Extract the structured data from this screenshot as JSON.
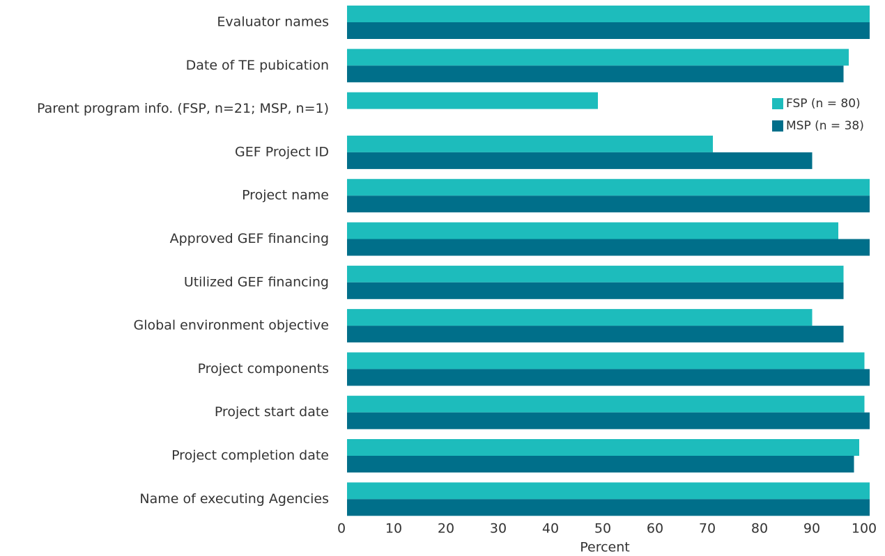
{
  "chart_data": {
    "type": "hbar",
    "categories": [
      "Evaluator names",
      "Date of TE pubication",
      "Parent program info. (FSP, n=21; MSP, n=1)",
      "GEF Project ID",
      "Project name",
      "Approved GEF financing",
      "Utilized GEF financing",
      "Global environment objective",
      "Project components",
      "Project start date",
      "Project completion date",
      "Name of executing Agencies"
    ],
    "series": [
      {
        "name": "FSP (n = 80)",
        "color": "#1dbcbc",
        "values": [
          100,
          96,
          48,
          70,
          100,
          94,
          95,
          89,
          99,
          99,
          98,
          100
        ]
      },
      {
        "name": "MSP (n = 38)",
        "color": "#006f8a",
        "values": [
          100,
          95,
          null,
          89,
          100,
          100,
          95,
          95,
          100,
          100,
          97,
          100
        ]
      }
    ],
    "xlabel": "Percent",
    "xlim": [
      0,
      100
    ],
    "xticks": [
      0,
      10,
      20,
      30,
      40,
      50,
      60,
      70,
      80,
      90,
      100
    ],
    "grid": false,
    "legend": "upper right"
  }
}
